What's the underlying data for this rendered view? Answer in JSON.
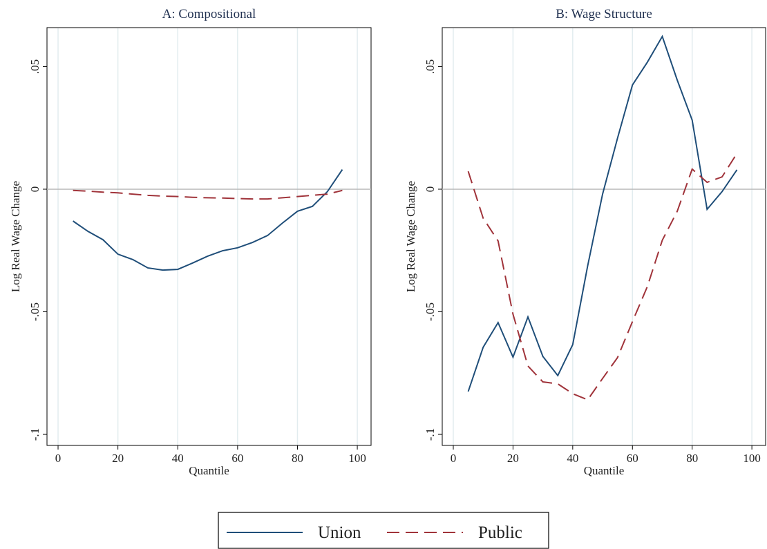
{
  "chart_data": [
    {
      "type": "line",
      "title": "A: Compositional",
      "x_label": "Quantile",
      "y_label": "Log Real Wage Change",
      "x": [
        5,
        10,
        15,
        20,
        25,
        30,
        35,
        40,
        45,
        50,
        55,
        60,
        65,
        70,
        75,
        80,
        85,
        90,
        95
      ],
      "series": [
        {
          "name": "Union",
          "color": "#1f4e79",
          "dash": "solid",
          "values": [
            -0.013,
            -0.0172,
            -0.0206,
            -0.0265,
            -0.0287,
            -0.0321,
            -0.033,
            -0.0327,
            -0.0301,
            -0.0273,
            -0.0251,
            -0.0239,
            -0.0217,
            -0.0189,
            -0.0138,
            -0.009,
            -0.007,
            -0.001,
            0.008
          ]
        },
        {
          "name": "Public",
          "color": "#a0333a",
          "dash": "dashed",
          "values": [
            -0.0005,
            -0.0008,
            -0.0012,
            -0.0015,
            -0.002,
            -0.0025,
            -0.0028,
            -0.003,
            -0.0033,
            -0.0035,
            -0.0036,
            -0.0038,
            -0.004,
            -0.004,
            -0.0035,
            -0.003,
            -0.0025,
            -0.002,
            -0.0005
          ]
        }
      ],
      "xlim": [
        -3.7,
        104.6
      ],
      "xticks": [
        0,
        20,
        40,
        60,
        80,
        100
      ],
      "ylim": [
        -0.1045,
        0.0659
      ],
      "yticks": [
        {
          "value": -0.1,
          "label": "-.1"
        },
        {
          "value": -0.05,
          "label": "-.05"
        },
        0,
        {
          "value": 0.05,
          "label": ".05"
        }
      ],
      "reference_line": 0,
      "grid": true
    },
    {
      "type": "line",
      "title": "B: Wage Structure",
      "x_label": "Quantile",
      "y_label": "Log Real Wage Change",
      "x": [
        5,
        10,
        15,
        20,
        25,
        30,
        35,
        40,
        45,
        50,
        55,
        60,
        65,
        70,
        75,
        80,
        85,
        90,
        95
      ],
      "series": [
        {
          "name": "Union",
          "color": "#1f4e79",
          "dash": "solid",
          "values": [
            -0.0825,
            -0.0645,
            -0.0544,
            -0.0685,
            -0.0521,
            -0.0682,
            -0.076,
            -0.0634,
            -0.0313,
            -0.002,
            0.0208,
            0.0425,
            0.0518,
            0.0623,
            0.0445,
            0.0282,
            -0.0082,
            -0.001,
            0.0079
          ]
        },
        {
          "name": "Public",
          "color": "#a0333a",
          "dash": "dashed",
          "values": [
            0.0073,
            -0.0118,
            -0.0211,
            -0.051,
            -0.0721,
            -0.0786,
            -0.0794,
            -0.0834,
            -0.0859,
            -0.0772,
            -0.0687,
            -0.054,
            -0.0397,
            -0.0208,
            -0.009,
            0.0082,
            0.0028,
            0.005,
            0.0146
          ]
        }
      ],
      "xlim": [
        -3.7,
        104.6
      ],
      "xticks": [
        0,
        20,
        40,
        60,
        80,
        100
      ],
      "ylim": [
        -0.1045,
        0.0659
      ],
      "yticks": [
        {
          "value": -0.1,
          "label": "-.1"
        },
        {
          "value": -0.05,
          "label": "-.05"
        },
        0,
        {
          "value": 0.05,
          "label": ".05"
        }
      ],
      "reference_line": 0,
      "grid": true
    }
  ]
}
